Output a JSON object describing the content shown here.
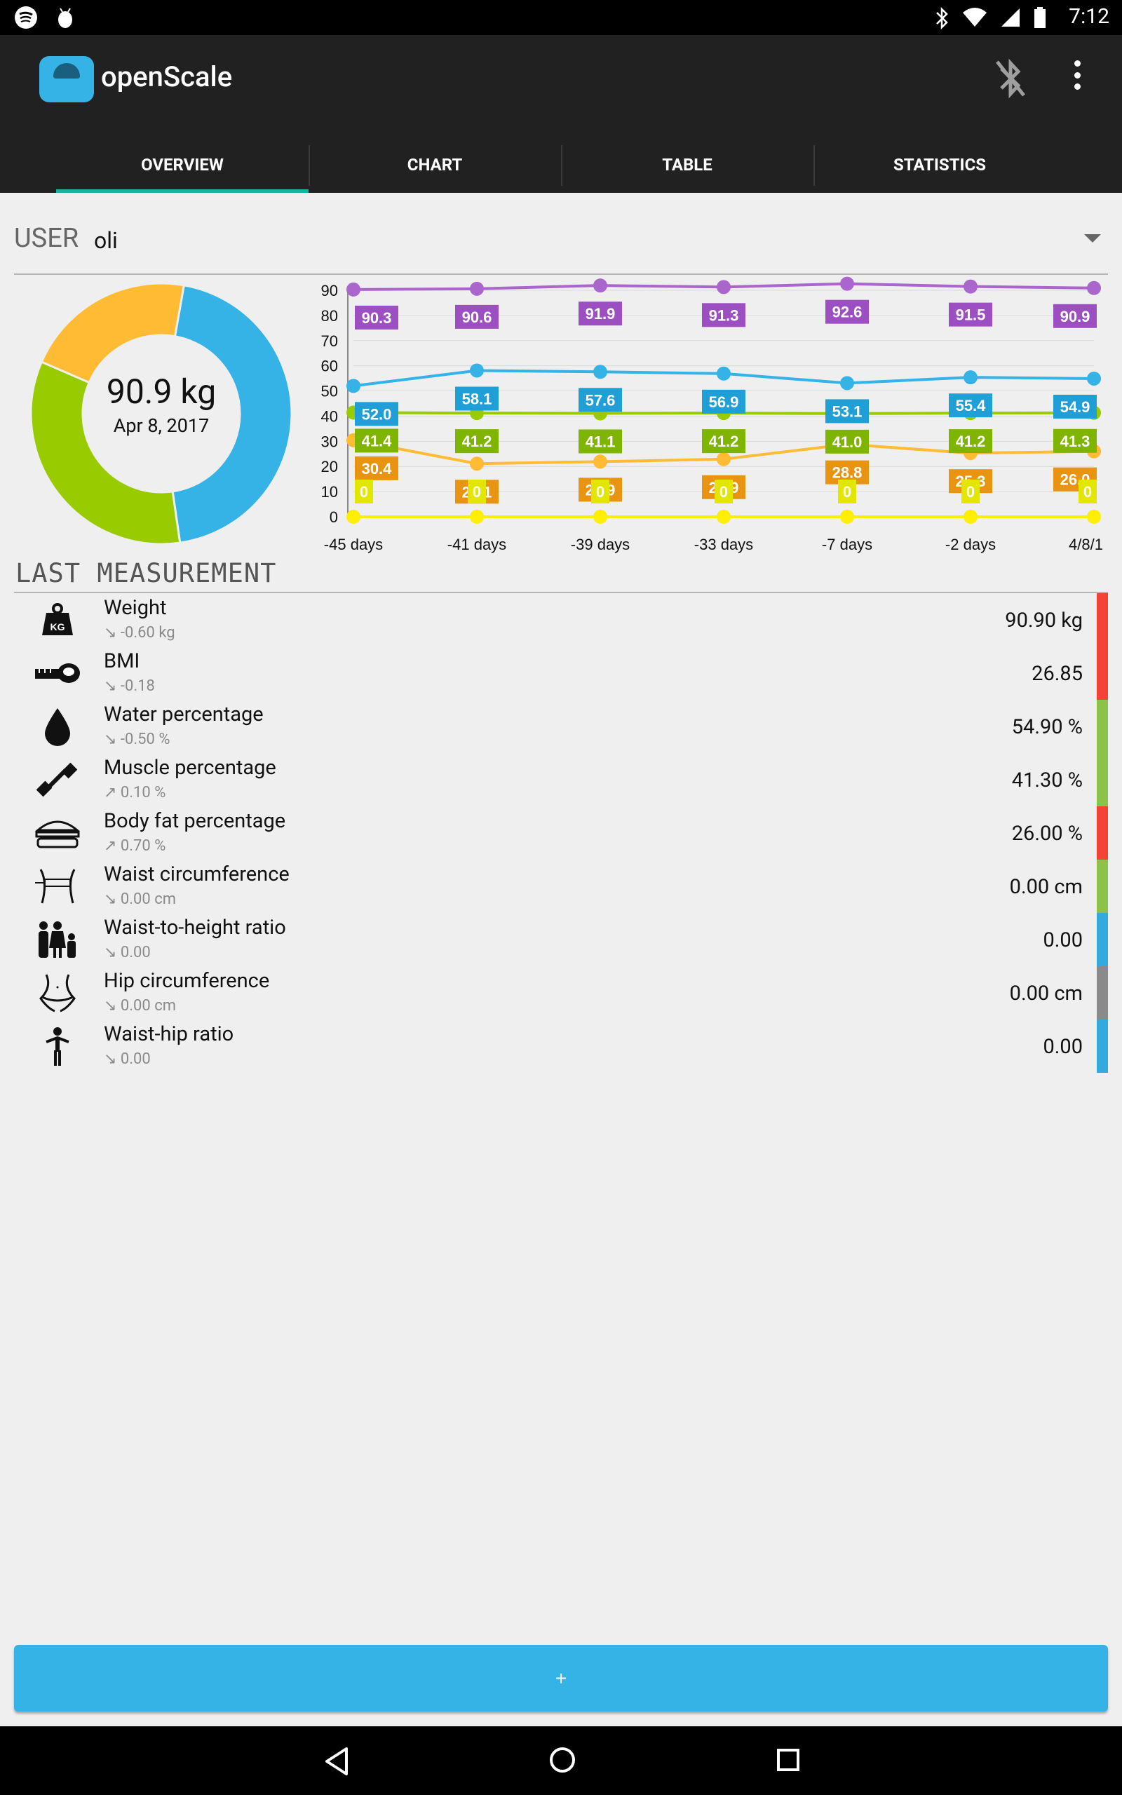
{
  "status_bar": {
    "time": "7:12"
  },
  "app": {
    "title": "openScale"
  },
  "tabs": [
    "OVERVIEW",
    "CHART",
    "TABLE",
    "STATISTICS"
  ],
  "user": {
    "label": "USER",
    "name": "oli"
  },
  "summary": {
    "weight": "90.9 kg",
    "date": "Apr 8, 2017"
  },
  "section_title": "LAST MEASUREMENT",
  "measurements": [
    {
      "name": "Weight",
      "diff": "↘ -0.60 kg",
      "value": "90.90 kg",
      "icon": "weight-kg-icon",
      "bar_color": "#f44336"
    },
    {
      "name": "BMI",
      "diff": "↘ -0.18",
      "value": "26.85",
      "icon": "tape-measure-icon",
      "bar_color": "#f44336"
    },
    {
      "name": "Water percentage",
      "diff": "↘ -0.50 %",
      "value": "54.90 %",
      "icon": "water-drop-icon",
      "bar_color": "#8bc34a"
    },
    {
      "name": "Muscle percentage",
      "diff": "↗ 0.10 %",
      "value": "41.30 %",
      "icon": "dumbbell-icon",
      "bar_color": "#8bc34a"
    },
    {
      "name": "Body fat percentage",
      "diff": "↗ 0.70 %",
      "value": "26.00 %",
      "icon": "burger-icon",
      "bar_color": "#f44336"
    },
    {
      "name": "Waist circumference",
      "diff": "↘ 0.00 cm",
      "value": "0.00 cm",
      "icon": "waist-icon",
      "bar_color": "#8bc34a"
    },
    {
      "name": "Waist-to-height ratio",
      "diff": "↘ 0.00",
      "value": "0.00",
      "icon": "family-icon",
      "bar_color": "#33a9de"
    },
    {
      "name": "Hip circumference",
      "diff": "↘ 0.00 cm",
      "value": "0.00 cm",
      "icon": "hip-icon",
      "bar_color": "#8a8a8a"
    },
    {
      "name": "Waist-hip ratio",
      "diff": "↘ 0.00",
      "value": "0.00",
      "icon": "person-icon",
      "bar_color": "#33a9de"
    }
  ],
  "add_button": {
    "label": "+"
  },
  "donut_data": {
    "segments": [
      {
        "value": 54.9,
        "color": "#35b3e6"
      },
      {
        "value": 41.3,
        "color": "#99cc00"
      },
      {
        "value": 26.0,
        "color": "#ffbb33"
      }
    ]
  },
  "chart_data": {
    "type": "line",
    "categories": [
      "-45 days",
      "-41 days",
      "-39 days",
      "-33 days",
      "-7 days",
      "-2 days",
      "4/8/1"
    ],
    "y_ticks": [
      0,
      10,
      20,
      30,
      40,
      50,
      60,
      70,
      80,
      90
    ],
    "ylim": [
      0,
      90
    ],
    "grid": true,
    "series": [
      {
        "color": "#aa66cc",
        "label_color": "#9c4fc0",
        "values": [
          90.3,
          90.6,
          91.9,
          91.3,
          92.6,
          91.5,
          90.9
        ],
        "labels": [
          "90.3",
          "90.6",
          "91.9",
          "91.3",
          "92.6",
          "91.5",
          "90.9"
        ]
      },
      {
        "color": "#35b3e6",
        "label_color": "#1f9fd6",
        "values": [
          52.0,
          58.1,
          57.6,
          56.9,
          53.1,
          55.4,
          54.9
        ],
        "labels": [
          "52.0",
          "58.1",
          "57.6",
          "56.9",
          "53.1",
          "55.4",
          "54.9"
        ]
      },
      {
        "color": "#99cc00",
        "label_color": "#7fb400",
        "values": [
          41.4,
          41.2,
          41.1,
          41.2,
          41.0,
          41.2,
          41.3
        ],
        "labels": [
          "41.4",
          "41.2",
          "41.1",
          "41.2",
          "41.0",
          "41.2",
          "41.3"
        ]
      },
      {
        "color": "#ffbb33",
        "label_color": "#e89411",
        "values": [
          30.4,
          21.1,
          21.9,
          22.9,
          28.8,
          25.3,
          26.0
        ],
        "labels": [
          "30.4",
          "21.1",
          "21.9",
          "22.9",
          "28.8",
          "25.3",
          "26.0"
        ]
      },
      {
        "color": "#ffee00",
        "label_color": "#e3e600",
        "values": [
          0,
          0,
          0,
          0,
          0,
          0,
          0
        ],
        "labels": [
          "0",
          "0",
          "0",
          "0",
          "0",
          "0",
          "0"
        ]
      }
    ]
  }
}
